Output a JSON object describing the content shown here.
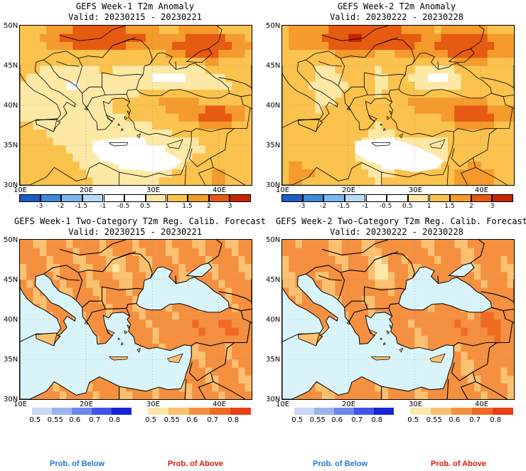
{
  "panels": [
    {
      "title_line1": "GEFS Week-1 T2m Anomaly",
      "title_line2": "Valid: 20230215 - 20230221",
      "kind": "anomaly"
    },
    {
      "title_line1": "GEFS Week-2 T2m Anomaly",
      "title_line2": "Valid: 20230222 - 20230228",
      "kind": "anomaly"
    },
    {
      "title_line1": "GEFS Week-1 Two-Category T2m Reg. Calib. Forecast",
      "title_line2": "Valid: 20230215 - 20230221",
      "kind": "probability"
    },
    {
      "title_line1": "GEFS Week-2 Two-Category T2m Reg. Calib. Forecast",
      "title_line2": "Valid: 20230222 - 20230228",
      "kind": "probability"
    }
  ],
  "axes": {
    "lat_labels": [
      "50N",
      "45N",
      "40N",
      "35N",
      "30N"
    ],
    "lon_labels": [
      "10E",
      "20E",
      "30E",
      "40E"
    ]
  },
  "anomaly_colorbar": {
    "labels": [
      "-3",
      "-2",
      "-1.5",
      "-1",
      "-0.5",
      "0.5",
      "1",
      "1.5",
      "2",
      "3"
    ],
    "colors": [
      "#1a5cc8",
      "#3d8bde",
      "#7ab8ee",
      "#b8dcf6",
      "#ffffff",
      "#ffffff",
      "#fde9a5",
      "#fbc24e",
      "#f59a2c",
      "#e65a12",
      "#c82300"
    ]
  },
  "prob_below_colorbar": {
    "labels": [
      "0.5",
      "0.55",
      "0.6",
      "0.7",
      "0.8"
    ],
    "colors": [
      "#c9d8f7",
      "#9db4f0",
      "#6f86ec",
      "#4154ea",
      "#1624d6"
    ],
    "caption": "Prob. of Below",
    "caption_color": "#1f77d4"
  },
  "prob_above_colorbar": {
    "labels": [
      "0.5",
      "0.55",
      "0.6",
      "0.7",
      "0.8"
    ],
    "colors": [
      "#fde8a8",
      "#fbc070",
      "#f49040",
      "#f06a24",
      "#ea3e14"
    ],
    "caption": "Prob. of Above",
    "caption_color": "#e0180c"
  },
  "chart_data": [
    {
      "type": "heatmap",
      "title": "GEFS Week-1 T2m Anomaly",
      "subtitle": "Valid: 20230215 - 20230221",
      "x_ticks": [
        "10E",
        "20E",
        "30E",
        "40E"
      ],
      "y_ticks": [
        "50N",
        "45N",
        "40N",
        "35N",
        "30N"
      ],
      "xlim": [
        10,
        45
      ],
      "ylim": [
        30,
        50
      ],
      "levels": [
        -3,
        -2,
        -1.5,
        -1,
        -0.5,
        0.5,
        1,
        1.5,
        2,
        3
      ]
    },
    {
      "type": "heatmap",
      "title": "GEFS Week-2 T2m Anomaly",
      "subtitle": "Valid: 20230222 - 20230228",
      "x_ticks": [
        "10E",
        "20E",
        "30E",
        "40E"
      ],
      "y_ticks": [
        "50N",
        "45N",
        "40N",
        "35N",
        "30N"
      ],
      "xlim": [
        10,
        45
      ],
      "ylim": [
        30,
        50
      ],
      "levels": [
        -3,
        -2,
        -1.5,
        -1,
        -0.5,
        0.5,
        1,
        1.5,
        2,
        3
      ]
    },
    {
      "type": "heatmap",
      "title": "GEFS Week-1 Two-Category T2m Reg. Calib. Forecast",
      "subtitle": "Valid: 20230215 - 20230221",
      "x_ticks": [
        "10E",
        "20E",
        "30E",
        "40E"
      ],
      "y_ticks": [
        "50N",
        "45N",
        "40N",
        "35N",
        "30N"
      ],
      "xlim": [
        10,
        45
      ],
      "ylim": [
        30,
        50
      ],
      "levels": [
        0.5,
        0.55,
        0.6,
        0.7,
        0.8
      ]
    },
    {
      "type": "heatmap",
      "title": "GEFS Week-2 Two-Category T2m Reg. Calib. Forecast",
      "subtitle": "Valid: 20230222 - 20230228",
      "x_ticks": [
        "10E",
        "20E",
        "30E",
        "40E"
      ],
      "y_ticks": [
        "50N",
        "45N",
        "40N",
        "35N",
        "30N"
      ],
      "xlim": [
        10,
        45
      ],
      "ylim": [
        30,
        50
      ],
      "levels": [
        0.5,
        0.55,
        0.6,
        0.7,
        0.8
      ]
    }
  ]
}
